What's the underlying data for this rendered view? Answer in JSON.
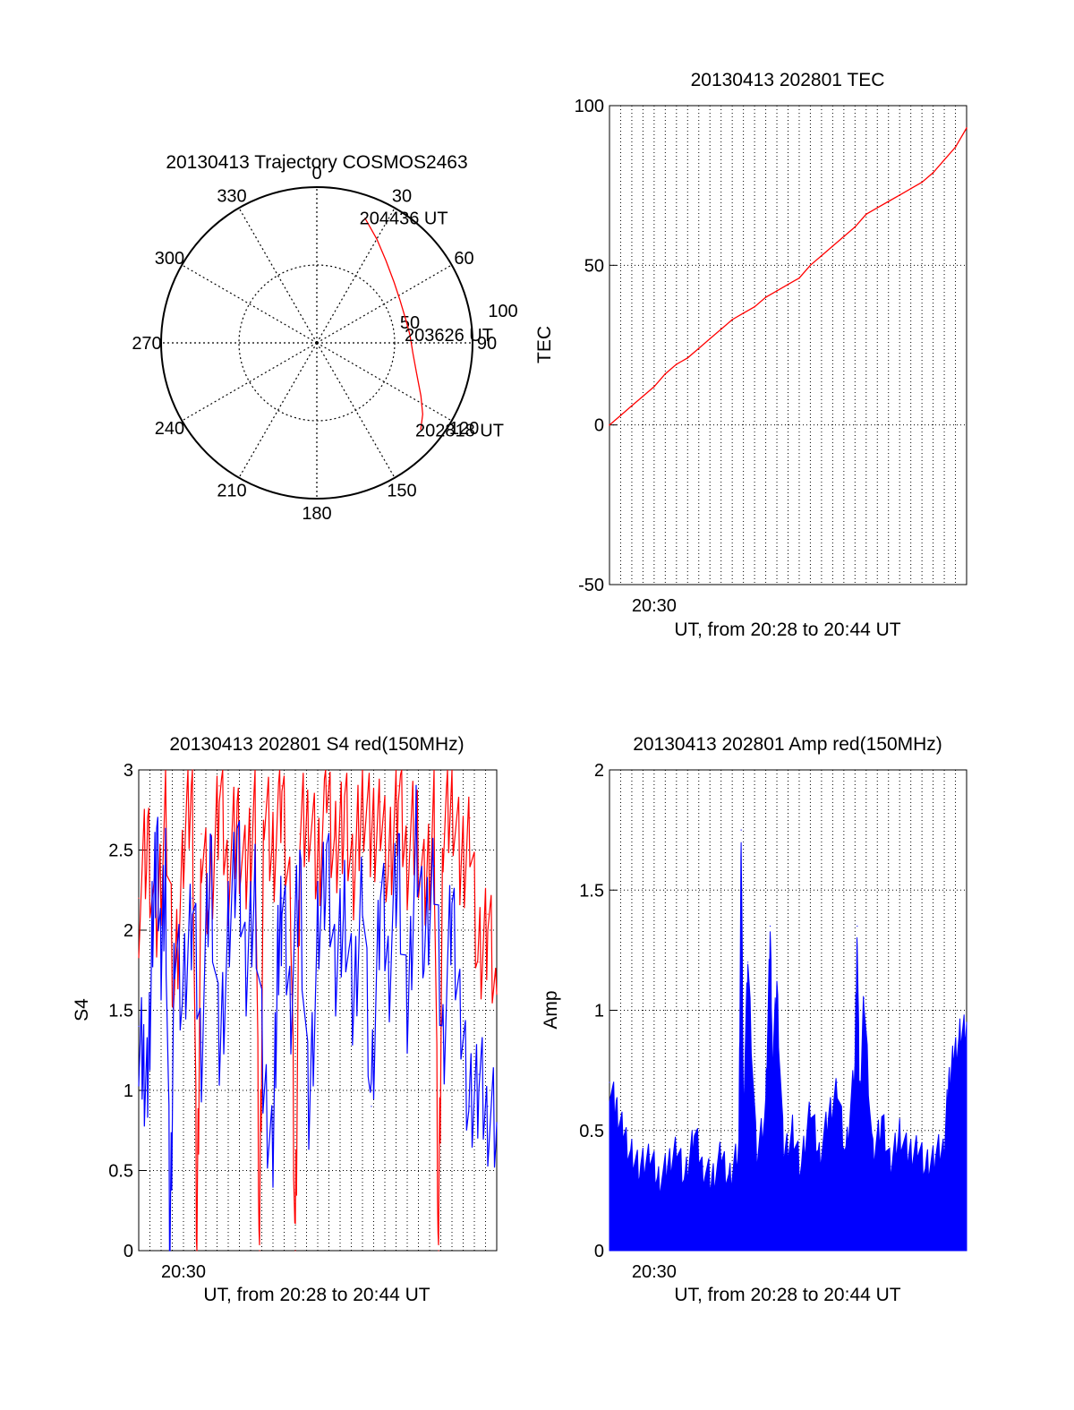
{
  "colors": {
    "red": "#ff0000",
    "blue": "#0000ff"
  },
  "chart_data": [
    {
      "id": "trajectory",
      "type": "polar",
      "title": "20130413 Trajectory COSMOS2463",
      "azimuth_labels": [
        {
          "az": 0,
          "label": "0"
        },
        {
          "az": 30,
          "label": "30"
        },
        {
          "az": 60,
          "label": "60"
        },
        {
          "az": 90,
          "label": "90"
        },
        {
          "az": 120,
          "label": "120"
        },
        {
          "az": 150,
          "label": "150"
        },
        {
          "az": 180,
          "label": "180"
        },
        {
          "az": 210,
          "label": "210"
        },
        {
          "az": 240,
          "label": "240"
        },
        {
          "az": 270,
          "label": "270"
        },
        {
          "az": 300,
          "label": "300"
        },
        {
          "az": 330,
          "label": "330"
        }
      ],
      "radius_labels": [
        "50",
        "100"
      ],
      "rmax": 100,
      "track": [
        {
          "az": 21,
          "r": 86
        },
        {
          "az": 30,
          "r": 77
        },
        {
          "az": 40,
          "r": 69
        },
        {
          "az": 52,
          "r": 63
        },
        {
          "az": 63,
          "r": 60
        },
        {
          "az": 75,
          "r": 59
        },
        {
          "az": 85,
          "r": 60
        },
        {
          "az": 96,
          "r": 62
        },
        {
          "az": 107,
          "r": 67
        },
        {
          "az": 117,
          "r": 75
        },
        {
          "az": 124,
          "r": 82
        },
        {
          "az": 130,
          "r": 87
        }
      ],
      "time_labels": [
        {
          "text": "204436 UT",
          "az": 21,
          "r": 86
        },
        {
          "text": "203626 UT",
          "az": 85,
          "r": 60
        },
        {
          "text": "202818 UT",
          "az": 130,
          "r": 87
        }
      ]
    },
    {
      "id": "tec",
      "type": "line",
      "title": "20130413 202801 TEC",
      "xlabel": "UT, from 20:28 to 20:44 UT",
      "ylabel": "TEC",
      "xlim": [
        0,
        16
      ],
      "ylim": [
        -50,
        100
      ],
      "yticks": [
        -50,
        0,
        50,
        100
      ],
      "xtick_label": {
        "x": 2,
        "label": "20:30"
      },
      "series": [
        {
          "color": "red",
          "x": [
            0,
            0.5,
            1,
            1.5,
            2,
            2.5,
            3,
            3.5,
            4,
            4.5,
            5,
            5.5,
            6,
            6.5,
            7,
            7.5,
            8,
            8.5,
            9,
            9.5,
            10,
            10.5,
            11,
            11.5,
            12,
            12.5,
            13,
            13.5,
            14,
            14.5,
            15,
            15.5,
            16
          ],
          "y": [
            0,
            3,
            6,
            9,
            12,
            16,
            19,
            21,
            24,
            27,
            30,
            33,
            35,
            37,
            40,
            42,
            44,
            46,
            50,
            53,
            56,
            59,
            62,
            66,
            68,
            70,
            72,
            74,
            76,
            79,
            83,
            87,
            93
          ]
        }
      ]
    },
    {
      "id": "s4",
      "type": "line",
      "title": "20130413 202801 S4 red(150MHz)",
      "xlabel": "UT, from 20:28 to 20:44 UT",
      "ylabel": "S4",
      "xlim": [
        0,
        16
      ],
      "ylim": [
        0,
        3
      ],
      "yticks": [
        0,
        0.5,
        1,
        1.5,
        2,
        2.5,
        3
      ],
      "ytick_labels": [
        "0",
        "0.5",
        "1",
        "1.5",
        "2",
        "2.5",
        "3"
      ],
      "xtick_label": {
        "x": 2,
        "label": "20:30"
      },
      "series": [
        {
          "color": "red",
          "x": [
            0,
            0.4,
            0.8,
            1.2,
            1.6,
            2.0,
            2.4,
            2.6,
            2.8,
            3.2,
            3.6,
            4.0,
            4.4,
            4.8,
            5.2,
            5.4,
            5.6,
            6.0,
            6.4,
            6.8,
            7.0,
            7.2,
            7.6,
            8.0,
            8.4,
            8.8,
            9.2,
            9.6,
            10.0,
            10.4,
            10.8,
            11.2,
            11.6,
            12.0,
            12.4,
            12.8,
            13.2,
            13.4,
            13.6,
            14.0,
            14.4,
            14.8,
            15.2,
            15.6,
            16.0
          ],
          "y": [
            2.2,
            2.6,
            2.0,
            2.8,
            1.6,
            2.5,
            3.0,
            0,
            2.6,
            2.2,
            2.9,
            2.4,
            2.7,
            2.3,
            2.9,
            0,
            2.8,
            2.5,
            2.9,
            2.2,
            0,
            2.6,
            2.8,
            2.4,
            2.9,
            2.5,
            2.8,
            2.3,
            2.9,
            2.6,
            2.8,
            2.4,
            2.9,
            2.5,
            2.7,
            2.2,
            2.8,
            0,
            2.6,
            2.9,
            2.4,
            2.7,
            1.8,
            2.1,
            1.6
          ]
        },
        {
          "color": "blue",
          "x": [
            0,
            0.2,
            0.4,
            0.6,
            0.8,
            1.0,
            1.2,
            1.4,
            1.6,
            2.0,
            2.4,
            2.8,
            3.2,
            3.6,
            4.0,
            4.4,
            4.8,
            5.2,
            5.6,
            6.0,
            6.2,
            6.4,
            6.8,
            7.2,
            7.6,
            8.0,
            8.4,
            8.8,
            9.2,
            9.6,
            10.0,
            10.4,
            10.8,
            11.2,
            11.6,
            12.0,
            12.4,
            12.8,
            13.2,
            13.6,
            14.0,
            14.4,
            14.8,
            15.2,
            15.6,
            16.0
          ],
          "y": [
            1.4,
            1.2,
            1.0,
            2.0,
            2.6,
            1.8,
            2.4,
            0,
            2.0,
            1.6,
            2.2,
            1.3,
            2.5,
            1.2,
            2.0,
            2.6,
            1.7,
            2.3,
            1.0,
            0.7,
            1.8,
            2.2,
            1.6,
            2.4,
            0.8,
            2.0,
            2.5,
            1.7,
            2.2,
            1.5,
            2.4,
            0.9,
            2.3,
            1.8,
            2.5,
            1.4,
            2.6,
            1.9,
            2.4,
            1.3,
            2.2,
            1.5,
            0.9,
            1.1,
            0.9,
            0.8
          ]
        }
      ]
    },
    {
      "id": "amp",
      "type": "line",
      "title": "20130413 202801 Amp red(150MHz)",
      "xlabel": "UT, from 20:28 to 20:44 UT",
      "ylabel": "Amp",
      "xlim": [
        0,
        16
      ],
      "ylim": [
        0,
        2
      ],
      "yticks": [
        0,
        0.5,
        1,
        1.5,
        2
      ],
      "ytick_labels": [
        "0",
        "0.5",
        "1",
        "1.5",
        "2"
      ],
      "xtick_label": {
        "x": 2,
        "label": "20:30"
      },
      "series": [
        {
          "color": "blue",
          "x": [
            0,
            0.3,
            0.6,
            1.0,
            1.4,
            1.8,
            2.2,
            2.6,
            3.0,
            3.4,
            3.8,
            4.2,
            4.6,
            5.0,
            5.4,
            5.8,
            5.9,
            6.0,
            6.2,
            6.6,
            7.0,
            7.2,
            7.3,
            7.5,
            7.8,
            8.2,
            8.6,
            9.0,
            9.4,
            9.8,
            10.2,
            10.6,
            11.0,
            11.1,
            11.2,
            11.4,
            11.8,
            12.2,
            12.6,
            13.0,
            13.4,
            13.8,
            14.2,
            14.6,
            15.0,
            15.2,
            15.4,
            15.7,
            16.0
          ],
          "y": [
            0.7,
            0.6,
            0.5,
            0.4,
            0.35,
            0.4,
            0.3,
            0.35,
            0.45,
            0.3,
            0.5,
            0.35,
            0.3,
            0.4,
            0.3,
            0.45,
            1.75,
            0.6,
            1.2,
            0.4,
            0.6,
            1.35,
            0.8,
            1.1,
            0.4,
            0.5,
            0.35,
            0.6,
            0.4,
            0.55,
            0.7,
            0.4,
            0.8,
            1.35,
            0.6,
            1.05,
            0.4,
            0.55,
            0.35,
            0.5,
            0.4,
            0.45,
            0.35,
            0.4,
            0.45,
            0.7,
            0.8,
            0.9,
            0.95
          ]
        }
      ]
    }
  ]
}
